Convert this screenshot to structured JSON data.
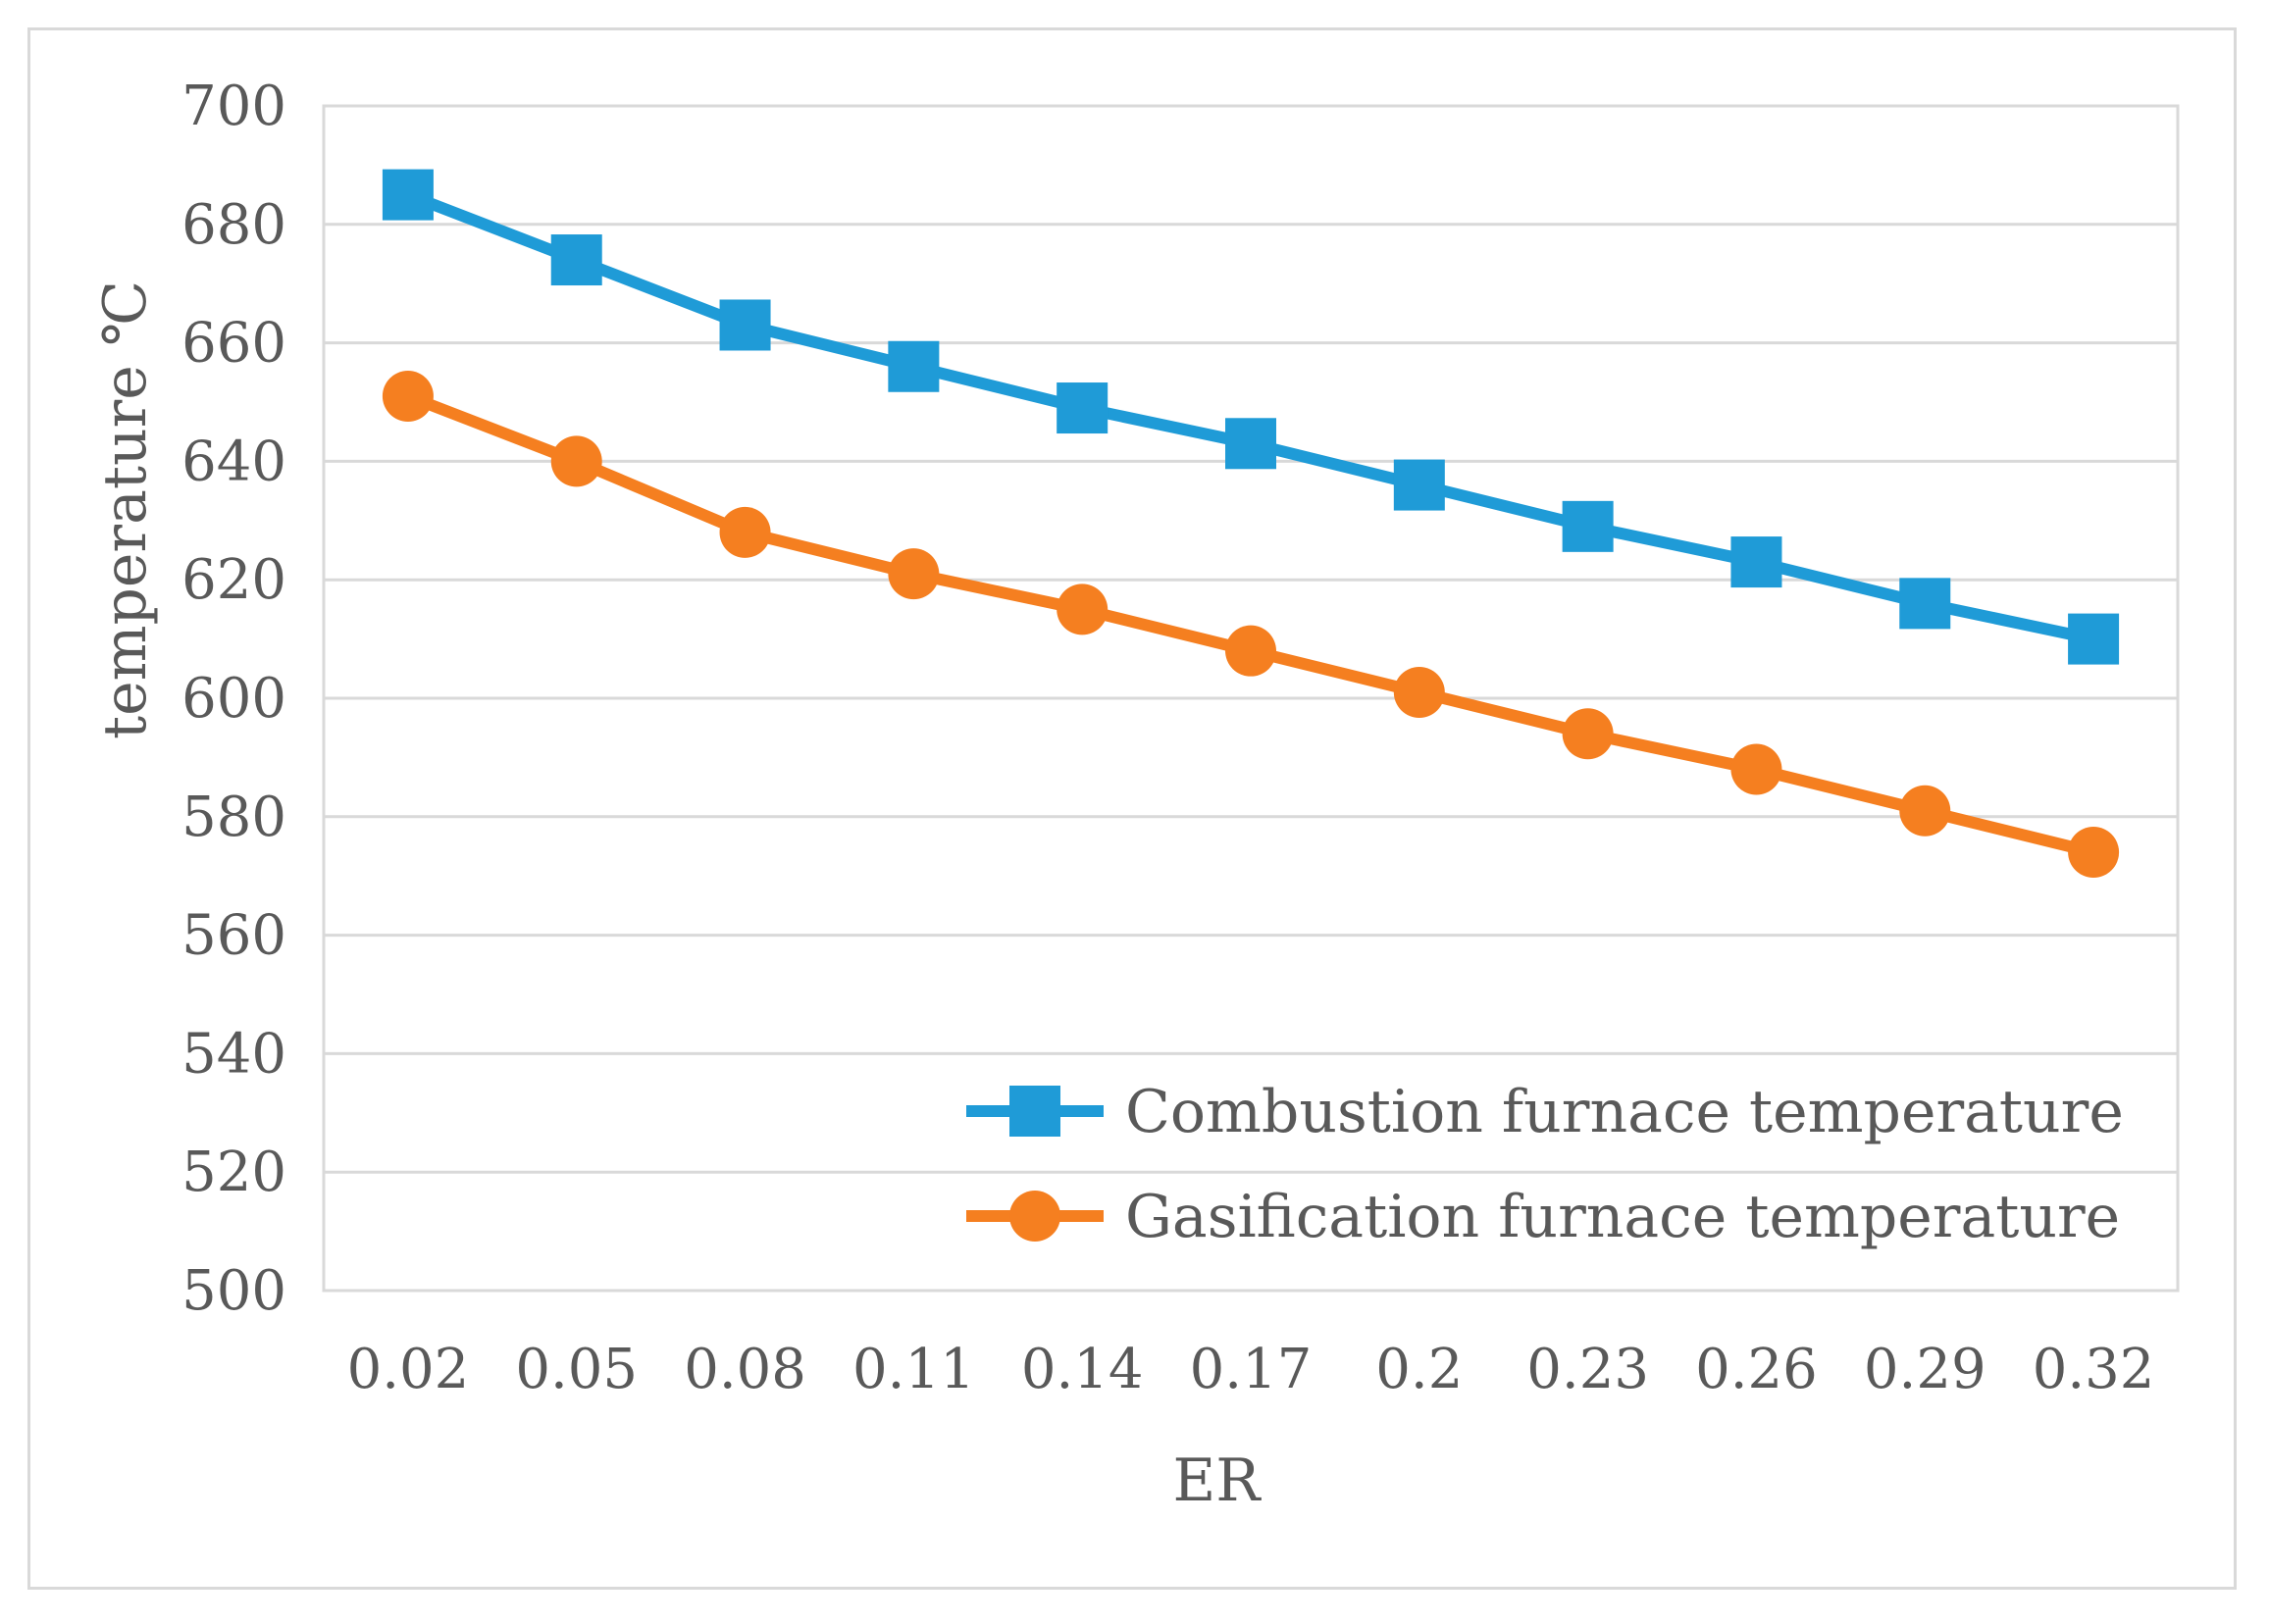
{
  "chart_data": {
    "type": "line",
    "title": "",
    "xlabel": "ER",
    "ylabel": "temperature ℃",
    "categories": [
      "0.02",
      "0.05",
      "0.08",
      "0.11",
      "0.14",
      "0.17",
      "0.2",
      "0.23",
      "0.26",
      "0.29",
      "0.32"
    ],
    "ylim": [
      500,
      700
    ],
    "yticks": [
      "500",
      "520",
      "540",
      "560",
      "580",
      "600",
      "620",
      "640",
      "660",
      "680",
      "700"
    ],
    "grid": true,
    "legend_position": "bottom-right",
    "series": [
      {
        "name": "Combustion furnace temperature",
        "marker": "square",
        "color": "#1f9bd7",
        "values": [
          685,
          674,
          663,
          656,
          649,
          643,
          636,
          629,
          623,
          616,
          610
        ]
      },
      {
        "name": "Gasification furnace temperature",
        "marker": "circle",
        "color": "#f57f20",
        "values": [
          651,
          640,
          628,
          621,
          615,
          608,
          601,
          594,
          588,
          581,
          574
        ]
      }
    ]
  }
}
